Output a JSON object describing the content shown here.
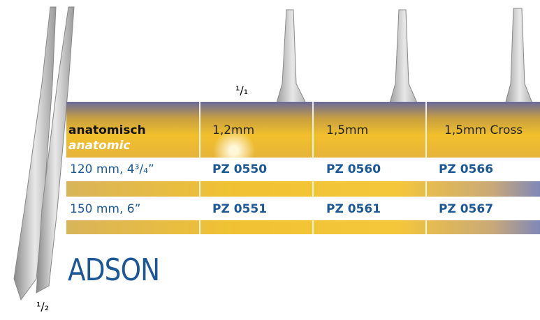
{
  "scale_top": "¹/₁",
  "scale_bottom": "¹/₂",
  "header": {
    "label": "anatomisch",
    "label_en": "anatomic",
    "columns": [
      "1,2mm",
      "1,5mm",
      "1,5mm Cross"
    ]
  },
  "table": {
    "rows": [
      [
        "120 mm, 4³/₄”",
        "PZ 0550",
        "PZ 0560",
        "PZ 0566"
      ],
      [
        "150 mm, 6”",
        "PZ 0551",
        "PZ 0561",
        "PZ 0567"
      ]
    ]
  },
  "title": "ADSON"
}
